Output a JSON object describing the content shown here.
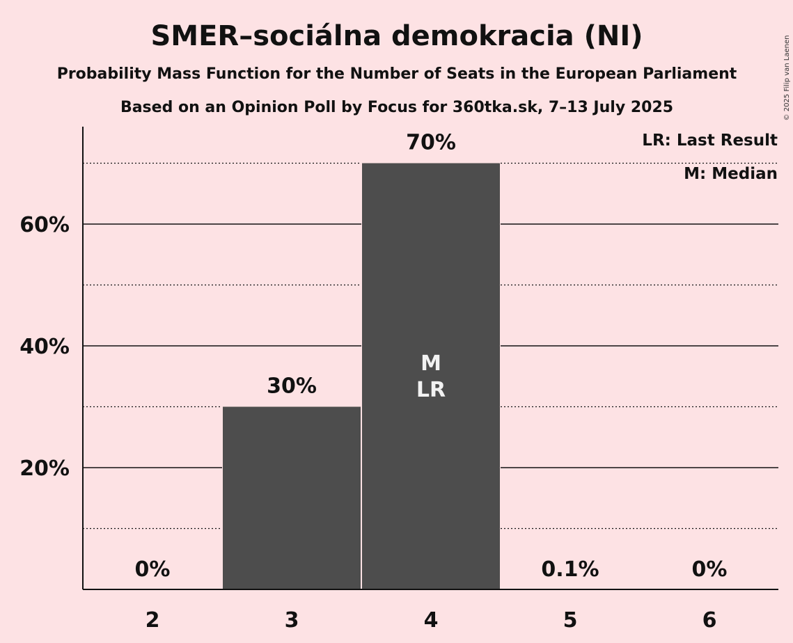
{
  "title": "SMER–sociálna demokracia (NI)",
  "subtitle": "Probability Mass Function for the Number of Seats in the European Parliament",
  "subtitle2": "Based on an Opinion Poll by Focus for 360tka.sk, 7–13 July 2025",
  "copyright": "© 2025 Filip van Laenen",
  "legend": {
    "last_result": "LR: Last Result",
    "median": "M: Median"
  },
  "colors": {
    "background": "#FDE2E4",
    "bar": "#4D4D4D",
    "text": "#111111",
    "inbar_text": "#F2F2F2"
  },
  "chart_data": {
    "type": "bar",
    "categories": [
      "2",
      "3",
      "4",
      "5",
      "6"
    ],
    "values": [
      0,
      30,
      70,
      0.1,
      0
    ],
    "value_labels": [
      "0%",
      "30%",
      "70%",
      "0.1%",
      "0%"
    ],
    "ylim": [
      0,
      76
    ],
    "yticks": [
      20,
      40,
      60
    ],
    "ytick_labels": [
      "20%",
      "40%",
      "60%"
    ],
    "minor_gridlines": [
      10,
      30,
      50,
      70
    ],
    "grid": true,
    "median_category": "4",
    "last_result_category": "4",
    "median_marker": "M",
    "last_result_marker": "LR",
    "legend_position": "top-right"
  }
}
